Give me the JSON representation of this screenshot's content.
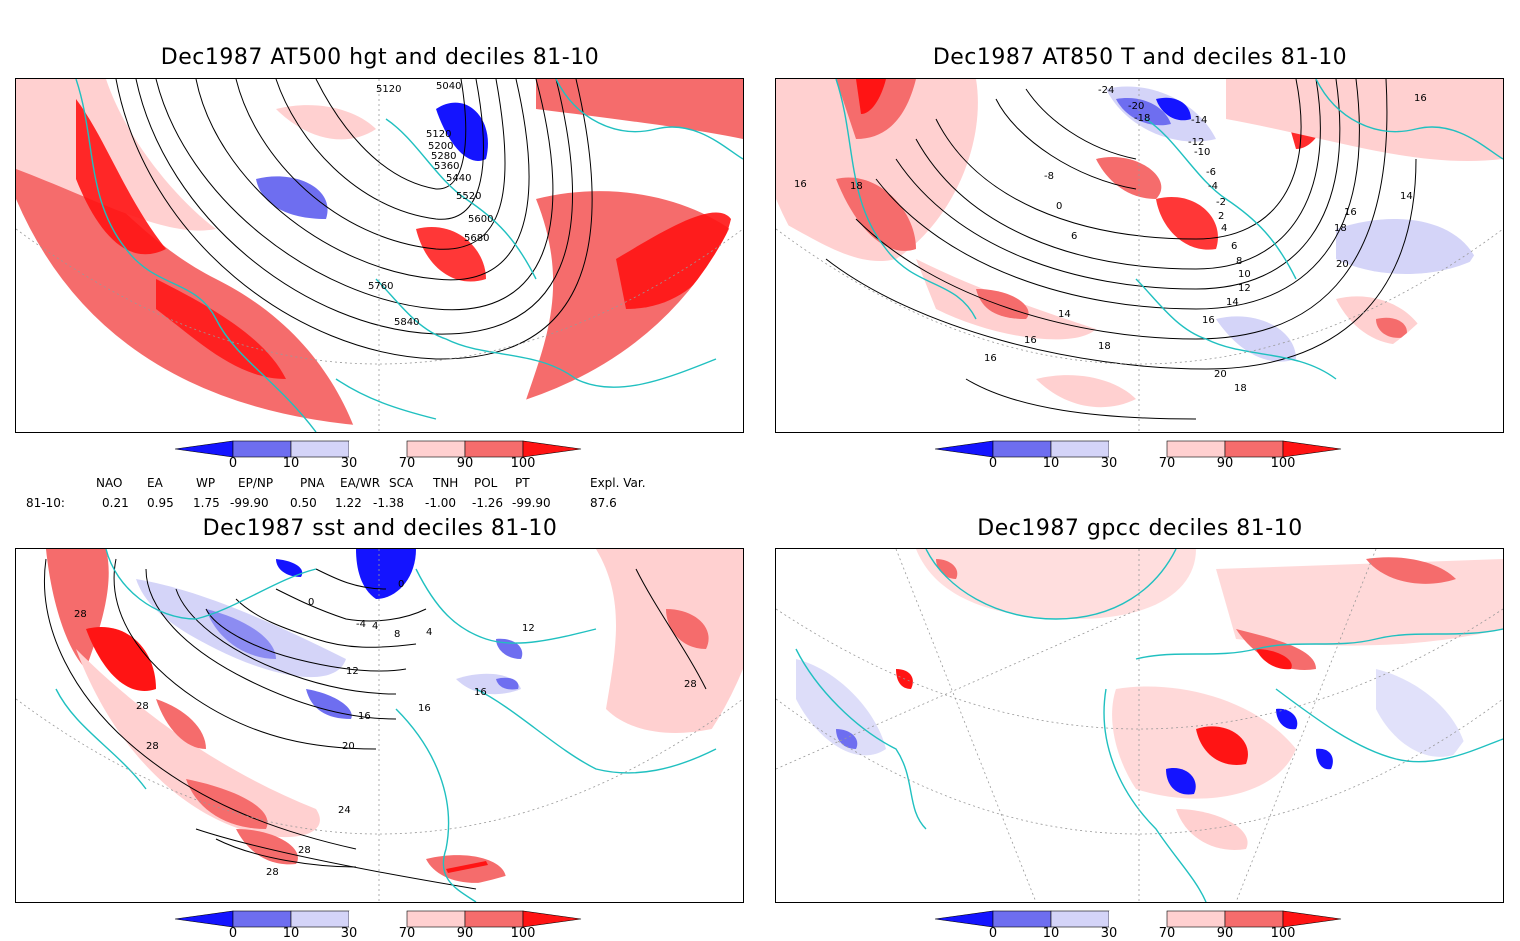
{
  "panels": [
    {
      "title": "Dec1987 AT500 hgt and deciles 81-10",
      "contour_labels": [
        "5040",
        "5120",
        "5120",
        "5200",
        "5280",
        "5360",
        "5440",
        "5520",
        "5600",
        "5680",
        "5760",
        "5840"
      ]
    },
    {
      "title": "Dec1987 AT850 T and deciles 81-10",
      "contour_labels": [
        "-24",
        "-20",
        "-18",
        "-14",
        "-12",
        "-10",
        "-8",
        "-6",
        "-4",
        "-2",
        "0",
        "2",
        "4",
        "6",
        "6",
        "8",
        "10",
        "12",
        "14",
        "16",
        "16",
        "16",
        "18",
        "18",
        "20",
        "14",
        "16",
        "18",
        "20",
        "14",
        "16",
        "16",
        "18"
      ]
    },
    {
      "title": "Dec1987 sst and deciles 81-10",
      "contour_labels": [
        "28",
        "28",
        "28",
        "0",
        "0",
        "-4",
        "4",
        "8",
        "4",
        "12",
        "16",
        "16",
        "16",
        "20",
        "24",
        "28",
        "28",
        "28",
        "12"
      ]
    },
    {
      "title": "Dec1987 gpcc deciles 81-10",
      "contour_labels": []
    }
  ],
  "colorbar": {
    "labels": [
      "0",
      "10",
      "30",
      "70",
      "90",
      "100"
    ],
    "colors": [
      "#1414ff",
      "#6e6ef0",
      "#d4d4f8",
      "#ffffff",
      "#ffd0d0",
      "#f56c6c",
      "#ff1414"
    ]
  },
  "indices": {
    "headers": [
      "NAO",
      "EA",
      "WP",
      "EP/NP",
      "PNA",
      "EA/WR",
      "SCA",
      "TNH",
      "POL",
      "PT",
      "Expl. Var."
    ],
    "row_label": "81-10:",
    "values": [
      "0.21",
      "0.95",
      "1.75",
      "-99.90",
      "0.50",
      "1.22",
      "-1.38",
      "-1.00",
      "-1.26",
      "-99.90",
      "87.6"
    ]
  },
  "map_style": {
    "coast": "#20c0c0",
    "grid": "#999999",
    "contour": "#000000"
  }
}
